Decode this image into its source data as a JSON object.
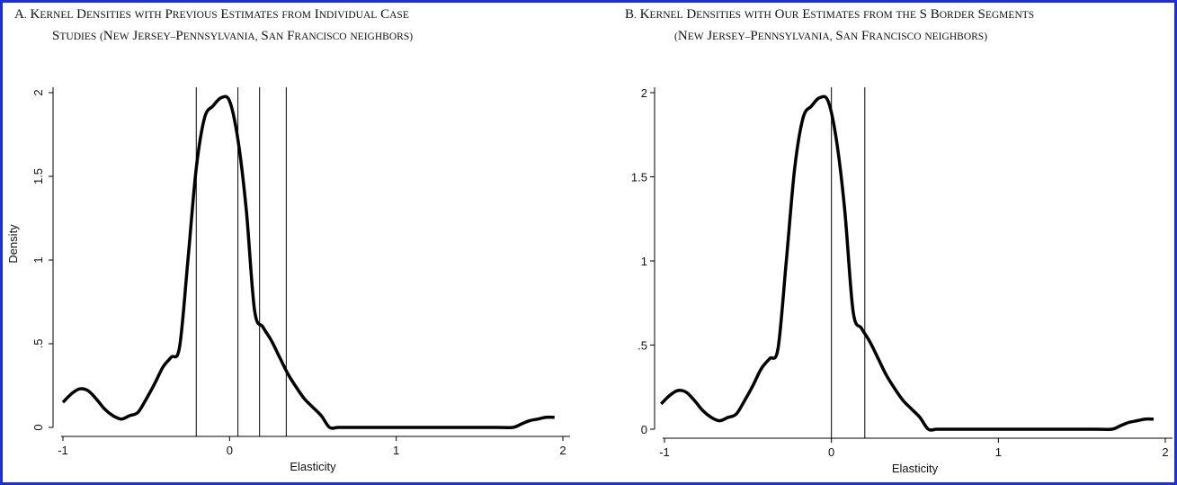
{
  "colors": {
    "frame": "#1f2fd6",
    "line": "#000000",
    "background": "#ffffff"
  },
  "chart_data": [
    {
      "type": "line",
      "panel": "A",
      "title_line1": "A. Kernel Densities with Previous Estimates from Individual Case",
      "title_line2": "Studies (New Jersey–Pennsylvania, San Francisco neighbors)",
      "xlabel": "Elasticity",
      "ylabel": "Density",
      "xlim": [
        -1,
        2
      ],
      "ylim": [
        0,
        2
      ],
      "xticks": [
        "-1",
        "0",
        "1",
        "2"
      ],
      "yticks": [
        "0",
        ".5",
        "1",
        "1.5",
        "2"
      ],
      "y_tick_orientation": "rotated",
      "x": [
        -1.0,
        -0.95,
        -0.9,
        -0.85,
        -0.8,
        -0.75,
        -0.7,
        -0.65,
        -0.6,
        -0.55,
        -0.5,
        -0.45,
        -0.4,
        -0.35,
        -0.3,
        -0.25,
        -0.2,
        -0.15,
        -0.1,
        -0.05,
        0.0,
        0.05,
        0.1,
        0.15,
        0.2,
        0.25,
        0.3,
        0.35,
        0.4,
        0.45,
        0.5,
        0.55,
        0.6,
        0.65,
        0.7,
        0.75,
        0.8,
        1.0,
        1.2,
        1.4,
        1.6,
        1.7,
        1.75,
        1.8,
        1.85,
        1.9,
        1.95
      ],
      "density": [
        0.15,
        0.2,
        0.23,
        0.22,
        0.17,
        0.11,
        0.07,
        0.05,
        0.07,
        0.09,
        0.17,
        0.26,
        0.36,
        0.42,
        0.48,
        1.0,
        1.55,
        1.85,
        1.92,
        1.97,
        1.95,
        1.72,
        1.3,
        0.7,
        0.6,
        0.52,
        0.42,
        0.32,
        0.24,
        0.17,
        0.12,
        0.07,
        0.0,
        0.0,
        0.0,
        0.0,
        0.0,
        0.0,
        0.0,
        0.0,
        0.0,
        0.0,
        0.02,
        0.04,
        0.05,
        0.06,
        0.06
      ],
      "x_offset": 0,
      "vlines": [
        -0.2,
        0.05,
        0.18,
        0.34
      ]
    },
    {
      "type": "line",
      "panel": "B",
      "title_line1": "B. Kernel Densities with Our Estimates from the S Border Segments",
      "title_line2": "(New Jersey–Pennsylvania, San Francisco neighbors)",
      "xlabel": "Elasticity",
      "ylabel": "",
      "xlim": [
        -1,
        2
      ],
      "ylim": [
        0,
        2
      ],
      "xticks": [
        "-1",
        "0",
        "1",
        "2"
      ],
      "yticks": [
        "0",
        ".5",
        "1",
        "1.5",
        "2"
      ],
      "y_tick_orientation": "horizontal",
      "x": [
        -1.0,
        -0.95,
        -0.9,
        -0.85,
        -0.8,
        -0.75,
        -0.7,
        -0.65,
        -0.6,
        -0.55,
        -0.5,
        -0.45,
        -0.4,
        -0.35,
        -0.3,
        -0.25,
        -0.2,
        -0.15,
        -0.1,
        -0.05,
        0.0,
        0.05,
        0.1,
        0.15,
        0.2,
        0.25,
        0.3,
        0.35,
        0.4,
        0.45,
        0.5,
        0.55,
        0.6,
        0.65,
        0.7,
        0.75,
        0.8,
        1.0,
        1.2,
        1.4,
        1.6,
        1.7,
        1.75,
        1.8,
        1.85,
        1.9,
        1.95
      ],
      "density": [
        0.15,
        0.2,
        0.23,
        0.22,
        0.17,
        0.11,
        0.07,
        0.05,
        0.07,
        0.09,
        0.17,
        0.26,
        0.36,
        0.42,
        0.48,
        1.0,
        1.55,
        1.85,
        1.92,
        1.97,
        1.95,
        1.72,
        1.3,
        0.7,
        0.6,
        0.52,
        0.42,
        0.32,
        0.24,
        0.17,
        0.12,
        0.07,
        0.0,
        0.0,
        0.0,
        0.0,
        0.0,
        0.0,
        0.0,
        0.0,
        0.0,
        0.0,
        0.02,
        0.04,
        0.05,
        0.06,
        0.06
      ],
      "x_offset": -0.02,
      "vlines": [
        0.0,
        0.2
      ]
    }
  ]
}
